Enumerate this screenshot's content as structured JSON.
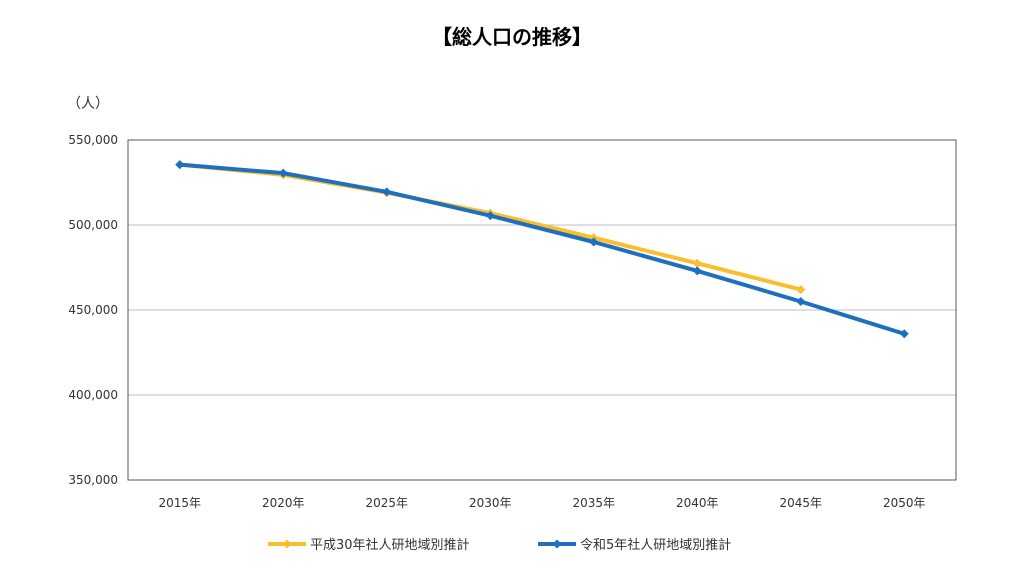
{
  "chart_data": {
    "type": "line",
    "title": "【総人口の推移】",
    "ylabel": "（人）",
    "xlabel": "",
    "categories": [
      "2015年",
      "2020年",
      "2025年",
      "2030年",
      "2035年",
      "2040年",
      "2045年",
      "2050年"
    ],
    "ylim": [
      350000,
      550000
    ],
    "yticks": [
      350000,
      400000,
      450000,
      500000,
      550000
    ],
    "ytick_labels": [
      "350,000",
      "400,000",
      "450,000",
      "500,000",
      "550,000"
    ],
    "grid": true,
    "legend_position": "bottom",
    "series": [
      {
        "name": "平成30年社人研地域別推計",
        "color": "#FBBF2D",
        "marker": "diamond",
        "values": [
          535500,
          529500,
          519000,
          507000,
          492500,
          477500,
          462000,
          null
        ]
      },
      {
        "name": "令和5年社人研地域別推計",
        "color": "#1F6FBF",
        "marker": "diamond",
        "values": [
          535500,
          530500,
          519500,
          505500,
          490000,
          473000,
          455000,
          436000
        ]
      }
    ]
  }
}
